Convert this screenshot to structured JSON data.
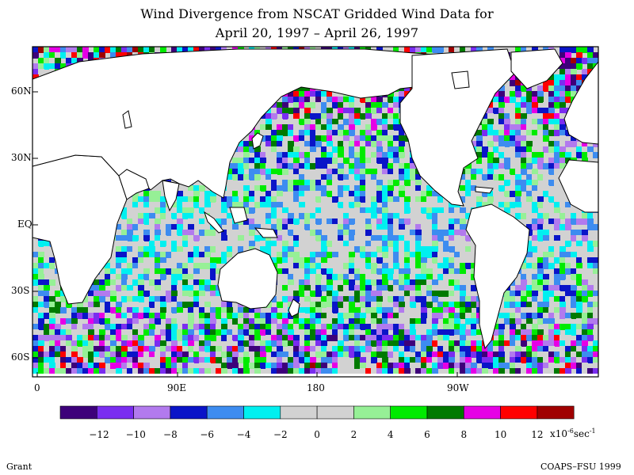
{
  "title": {
    "line1": "Wind Divergence from NSCAT Gridded Wind Data for",
    "line2": "April 20, 1997 – April 26, 1997"
  },
  "map": {
    "lat_labels": [
      "60N",
      "30N",
      "EQ",
      "30S",
      "60S"
    ],
    "lon_labels": [
      "0",
      "90E",
      "180",
      "90W"
    ],
    "land_color": "#ffffff",
    "coastline_color": "#000000"
  },
  "colorbar": {
    "colors": [
      "#3d007a",
      "#7a2df0",
      "#b27aee",
      "#0a14c8",
      "#3d8cf0",
      "#00f0f0",
      "#d2d2d2",
      "#d2d2d2",
      "#96f096",
      "#00eb00",
      "#007a00",
      "#e600e6",
      "#ff0000",
      "#a00000"
    ],
    "labels": [
      "-12",
      "-10",
      "-8",
      "-6",
      "-4",
      "-2",
      "0",
      "2",
      "4",
      "6",
      "8",
      "10",
      "12"
    ],
    "units_base": "x10",
    "units_exp": "-6",
    "units_unit": "sec",
    "units_exp2": "-1"
  },
  "footer": {
    "left": "Grant",
    "right": "COAPS–FSU 1999"
  }
}
